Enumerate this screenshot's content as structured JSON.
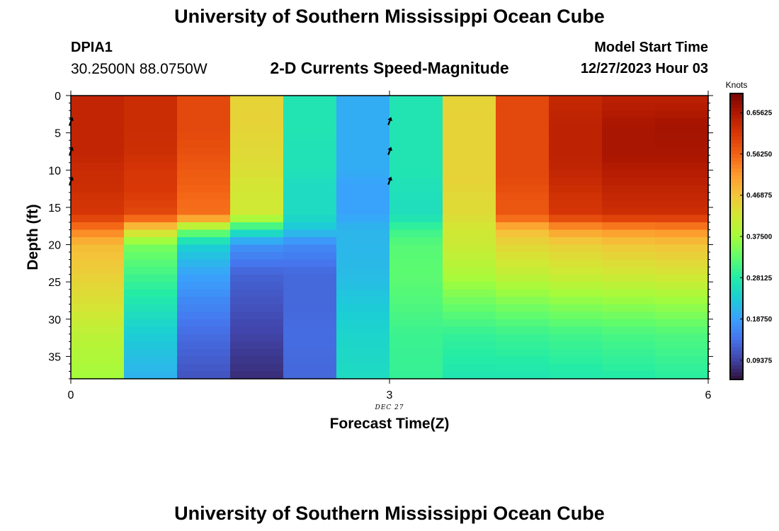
{
  "header": {
    "title": "University of Southern Mississippi Ocean Cube",
    "station": "DPIA1",
    "coords": "30.2500N  88.0750W",
    "subtitle": "2-D Currents Speed-Magnitude",
    "model_label": "Model Start Time",
    "model_time": "12/27/2023 Hour 03"
  },
  "footer": {
    "title": "University of Southern Mississippi Ocean Cube"
  },
  "colors": {
    "background": "#ffffff",
    "colormap": [
      "#30123b",
      "#4145ab",
      "#4675ed",
      "#39a2fc",
      "#1bcfd4",
      "#24eca6",
      "#61fc6c",
      "#a4fc3b",
      "#d1e834",
      "#f3c63a",
      "#fe9b2d",
      "#f36315",
      "#d93806",
      "#b11901",
      "#7a0402"
    ]
  },
  "chart_data": {
    "type": "heatmap",
    "xlabel": "Forecast Time(Z)",
    "ylabel": "Depth (ft)",
    "date_label": "DEC 27",
    "x_ticks": [
      "0",
      "3",
      "6"
    ],
    "y_ticks": [
      "0",
      "5",
      "10",
      "15",
      "20",
      "25",
      "30",
      "35"
    ],
    "xlim": [
      0,
      6
    ],
    "ylim": [
      0,
      38
    ],
    "y_inverted": true,
    "colorbar": {
      "label": "Knots",
      "ticks": [
        "0.09375",
        "0.18750",
        "0.28125",
        "0.37500",
        "0.46875",
        "0.56250",
        "0.65625"
      ],
      "range": [
        0.05,
        0.7
      ]
    },
    "time_columns": [
      0,
      0.5,
      1,
      1.5,
      2,
      2.5,
      3,
      3.5,
      4,
      4.5,
      5,
      5.5,
      6
    ],
    "depth_profile_ft": [
      0,
      4,
      8,
      10,
      12,
      14,
      16,
      18,
      20,
      24,
      28,
      32,
      38
    ],
    "speed_knots": [
      [
        0.64,
        0.63,
        0.62,
        0.56,
        0.34,
        0.2,
        0.2,
        0.34,
        0.56,
        0.62,
        0.64,
        0.64,
        0.64
      ],
      [
        0.64,
        0.63,
        0.62,
        0.56,
        0.34,
        0.2,
        0.2,
        0.34,
        0.56,
        0.62,
        0.66,
        0.66,
        0.67
      ],
      [
        0.64,
        0.63,
        0.61,
        0.55,
        0.33,
        0.2,
        0.2,
        0.34,
        0.56,
        0.62,
        0.66,
        0.66,
        0.66
      ],
      [
        0.63,
        0.62,
        0.6,
        0.54,
        0.33,
        0.2,
        0.2,
        0.34,
        0.56,
        0.62,
        0.65,
        0.65,
        0.65
      ],
      [
        0.63,
        0.62,
        0.6,
        0.53,
        0.32,
        0.19,
        0.19,
        0.34,
        0.56,
        0.61,
        0.64,
        0.64,
        0.64
      ],
      [
        0.62,
        0.61,
        0.59,
        0.52,
        0.32,
        0.19,
        0.19,
        0.33,
        0.55,
        0.6,
        0.63,
        0.63,
        0.63
      ],
      [
        0.62,
        0.6,
        0.58,
        0.52,
        0.32,
        0.19,
        0.19,
        0.33,
        0.55,
        0.6,
        0.62,
        0.62,
        0.62
      ],
      [
        0.58,
        0.5,
        0.4,
        0.3,
        0.25,
        0.2,
        0.22,
        0.38,
        0.46,
        0.5,
        0.52,
        0.52,
        0.53
      ],
      [
        0.56,
        0.4,
        0.29,
        0.19,
        0.16,
        0.17,
        0.25,
        0.39,
        0.44,
        0.45,
        0.46,
        0.47,
        0.47
      ],
      [
        0.54,
        0.37,
        0.24,
        0.14,
        0.11,
        0.15,
        0.28,
        0.37,
        0.4,
        0.41,
        0.42,
        0.42,
        0.43
      ],
      [
        0.52,
        0.34,
        0.2,
        0.12,
        0.1,
        0.16,
        0.3,
        0.33,
        0.34,
        0.35,
        0.36,
        0.36,
        0.37
      ],
      [
        0.5,
        0.3,
        0.17,
        0.1,
        0.09,
        0.18,
        0.31,
        0.29,
        0.3,
        0.3,
        0.31,
        0.31,
        0.32
      ],
      [
        0.48,
        0.27,
        0.14,
        0.08,
        0.07,
        0.19,
        0.32,
        0.27,
        0.27,
        0.27,
        0.28,
        0.28,
        0.29
      ]
    ],
    "vectors": [
      {
        "time": 0,
        "depth_ft": 3.5
      },
      {
        "time": 0,
        "depth_ft": 7.5
      },
      {
        "time": 0,
        "depth_ft": 11.5
      },
      {
        "time": 3,
        "depth_ft": 3.5
      },
      {
        "time": 3,
        "depth_ft": 7.5
      },
      {
        "time": 3,
        "depth_ft": 11.5
      }
    ]
  }
}
